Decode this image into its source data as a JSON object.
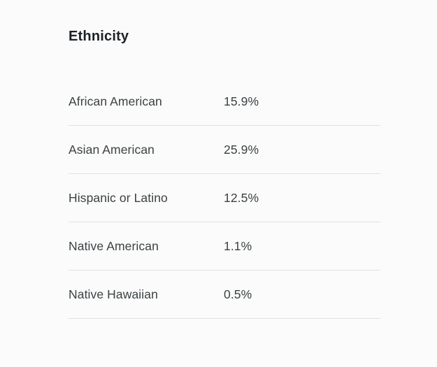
{
  "section": {
    "title": "Ethnicity"
  },
  "table": {
    "rows": [
      {
        "label": "African American",
        "value": "15.9%"
      },
      {
        "label": "Asian American",
        "value": "25.9%"
      },
      {
        "label": "Hispanic or Latino",
        "value": "12.5%"
      },
      {
        "label": "Native American",
        "value": "1.1%"
      },
      {
        "label": "Native Hawaiian",
        "value": "0.5%"
      }
    ]
  },
  "chart_data": {
    "type": "table",
    "title": "Ethnicity",
    "categories": [
      "African American",
      "Asian American",
      "Hispanic or Latino",
      "Native American",
      "Native Hawaiian"
    ],
    "values": [
      15.9,
      25.9,
      12.5,
      1.1,
      0.5
    ],
    "unit": "%",
    "layout": "two-column label/value list with horizontal dividers"
  },
  "colors": {
    "background": "#fafbfa",
    "title_text": "#1e2227",
    "row_text": "#3c4145",
    "divider": "#dfe2e0"
  }
}
